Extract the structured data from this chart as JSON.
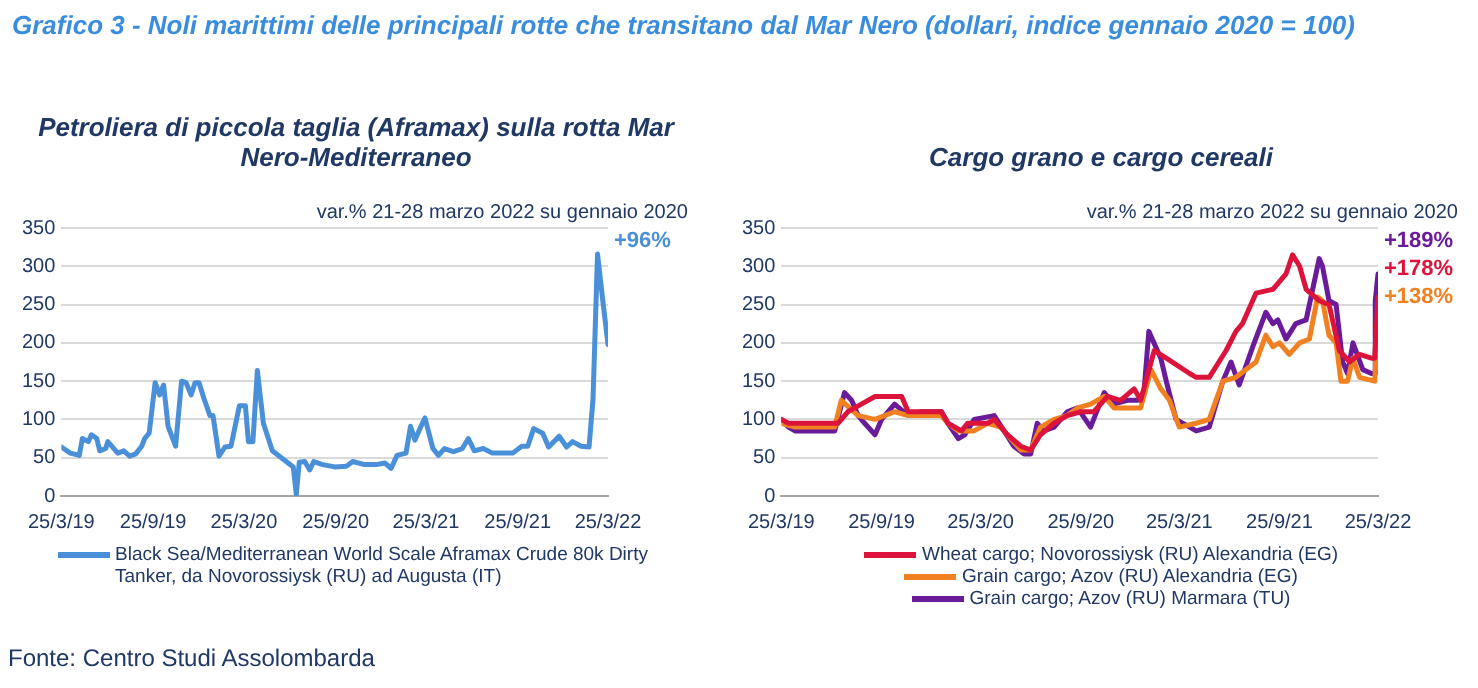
{
  "chart_data": [
    {
      "type": "line",
      "title": "Petroliera di piccola taglia (Aframax) sulla rotta Mar Nero-Mediterraneo",
      "annotations": [
        "Grafico 3 - Noli marittimi delle principali rotte che transitano dal Mar Nero (dollari, indice gennaio 2020 = 100)",
        "var.% 21-28 marzo 2022 su gennaio 2020",
        "+96%",
        "Fonte: Centro Studi Assolombarda"
      ],
      "x": [
        "2019-03-25",
        "2019-04-12",
        "2019-04-30",
        "2019-05-06",
        "2019-05-18",
        "2019-05-24",
        "2019-06-04",
        "2019-06-10",
        "2019-06-22",
        "2019-06-26",
        "2019-07-04",
        "2019-07-16",
        "2019-07-28",
        "2019-08-09",
        "2019-08-21",
        "2019-09-02",
        "2019-09-08",
        "2019-09-17",
        "2019-09-29",
        "2019-10-08",
        "2019-10-16",
        "2019-10-25",
        "2019-11-09",
        "2019-11-21",
        "2019-11-30",
        "2019-12-10",
        "2019-12-18",
        "2019-12-26",
        "2020-01-05",
        "2020-01-17",
        "2020-01-23",
        "2020-02-04",
        "2020-02-16",
        "2020-02-28",
        "2020-03-16",
        "2020-03-28",
        "2020-04-03",
        "2020-04-12",
        "2020-04-21",
        "2020-05-03",
        "2020-05-21",
        "2020-06-08",
        "2020-07-02",
        "2020-07-08",
        "2020-07-14",
        "2020-07-25",
        "2020-08-04",
        "2020-08-12",
        "2020-08-30",
        "2020-09-23",
        "2020-10-17",
        "2020-10-29",
        "2020-11-22",
        "2020-12-15",
        "2021-01-02",
        "2021-01-14",
        "2021-01-26",
        "2021-02-13",
        "2021-02-22",
        "2021-03-03",
        "2021-03-15",
        "2021-03-23",
        "2021-04-08",
        "2021-04-19",
        "2021-05-01",
        "2021-05-19",
        "2021-06-06",
        "2021-06-18",
        "2021-06-30",
        "2021-07-18",
        "2021-08-05",
        "2021-09-15",
        "2021-10-03",
        "2021-10-15",
        "2021-10-27",
        "2021-11-14",
        "2021-11-26",
        "2021-12-17",
        "2022-01-01",
        "2022-01-13",
        "2022-01-30",
        "2022-02-15",
        "2022-02-23",
        "2022-03-04",
        "2022-03-13",
        "2022-03-25"
      ],
      "series": [
        {
          "name": "Black Sea/Mediterranean World Scale Aframax Crude 80k Dirty Tanker, da Novorossiysk (RU) ad Augusta (IT)",
          "color": "#4a90d9",
          "values": [
            64,
            56,
            53,
            75,
            71,
            80,
            75,
            59,
            62,
            71,
            65,
            56,
            59,
            52,
            55,
            65,
            75,
            82,
            148,
            132,
            145,
            91,
            65,
            150,
            148,
            132,
            148,
            148,
            127,
            105,
            105,
            52,
            64,
            65,
            118,
            118,
            71,
            71,
            164,
            95,
            59,
            50,
            38,
            2,
            44,
            45,
            34,
            45,
            41,
            38,
            39,
            45,
            41,
            41,
            43,
            36,
            53,
            56,
            91,
            73,
            91,
            102,
            62,
            53,
            62,
            58,
            62,
            75,
            59,
            62,
            56,
            56,
            65,
            65,
            88,
            82,
            64,
            78,
            64,
            71,
            65,
            64,
            127,
            316,
            264,
            198
          ]
        }
      ],
      "xlim": [
        "2019-03-25",
        "2022-03-25"
      ],
      "xticks": [
        {
          "value": "2019-03-25",
          "label": "25/3/19"
        },
        {
          "value": "2019-09-25",
          "label": "25/9/19"
        },
        {
          "value": "2020-03-25",
          "label": "25/3/20"
        },
        {
          "value": "2020-09-25",
          "label": "25/9/20"
        },
        {
          "value": "2021-03-25",
          "label": "25/3/21"
        },
        {
          "value": "2021-09-25",
          "label": "25/9/21"
        },
        {
          "value": "2022-03-25",
          "label": "25/3/22"
        }
      ],
      "ylim": [
        0,
        350
      ],
      "yticks": [
        0,
        50,
        100,
        150,
        200,
        250,
        300,
        350
      ],
      "grid": "y",
      "legend": "bottom",
      "marker": "none",
      "line_style": "solid"
    },
    {
      "type": "line",
      "title": "Cargo grano e cargo cereali",
      "annotations": [
        "var.% 21-28 marzo 2022 su gennaio 2020",
        "+189%",
        "+178%",
        "+138%"
      ],
      "xlim": [
        "2019-03-25",
        "2022-03-25"
      ],
      "xticks": [
        {
          "value": "2019-03-25",
          "label": "25/3/19"
        },
        {
          "value": "2019-09-25",
          "label": "25/9/19"
        },
        {
          "value": "2020-03-25",
          "label": "25/3/20"
        },
        {
          "value": "2020-09-25",
          "label": "25/9/20"
        },
        {
          "value": "2021-03-25",
          "label": "25/3/21"
        },
        {
          "value": "2021-09-25",
          "label": "25/9/21"
        },
        {
          "value": "2022-03-25",
          "label": "25/3/22"
        }
      ],
      "ylim": [
        0,
        350
      ],
      "yticks": [
        0,
        50,
        100,
        150,
        200,
        250,
        300,
        350
      ],
      "grid": "y",
      "legend": "bottom",
      "marker": "none",
      "line_style": "solid",
      "series": [
        {
          "name": "Wheat cargo; Novorossiysk (RU) Alexandria (EG)",
          "color": "#dc143c",
          "x": [
            "2019-03-25",
            "2019-04-07",
            "2019-07-07",
            "2019-07-25",
            "2019-08-19",
            "2019-09-13",
            "2019-11-01",
            "2019-11-13",
            "2020-01-13",
            "2020-01-25",
            "2020-02-19",
            "2020-03-01",
            "2020-04-07",
            "2020-04-19",
            "2020-05-13",
            "2020-06-07",
            "2020-06-25",
            "2020-07-13",
            "2020-08-07",
            "2020-08-31",
            "2020-09-25",
            "2020-10-19",
            "2020-11-13",
            "2020-12-07",
            "2021-01-01",
            "2021-01-13",
            "2021-02-07",
            "2021-03-01",
            "2021-04-13",
            "2021-04-25",
            "2021-05-19",
            "2021-06-19",
            "2021-07-07",
            "2021-07-19",
            "2021-08-13",
            "2021-09-13",
            "2021-10-07",
            "2021-10-19",
            "2021-11-01",
            "2021-11-13",
            "2021-12-07",
            "2021-12-25",
            "2022-01-13",
            "2022-02-01",
            "2022-02-19",
            "2022-03-13",
            "2022-03-19",
            "2022-03-25"
          ],
          "values": [
            100,
            95,
            95,
            110,
            120,
            130,
            130,
            110,
            110,
            95,
            85,
            95,
            95,
            100,
            80,
            65,
            60,
            80,
            95,
            105,
            110,
            110,
            130,
            125,
            140,
            125,
            190,
            180,
            160,
            155,
            155,
            190,
            215,
            225,
            265,
            270,
            290,
            315,
            300,
            270,
            255,
            250,
            190,
            175,
            185,
            180,
            180,
            260
          ]
        },
        {
          "name": "Grain cargo; Azov (RU) Alexandria (EG)",
          "color": "#f08020",
          "x": [
            "2019-03-25",
            "2019-04-19",
            "2019-07-01",
            "2019-07-13",
            "2019-08-13",
            "2019-09-13",
            "2019-10-19",
            "2019-11-13",
            "2020-01-13",
            "2020-01-25",
            "2020-02-13",
            "2020-03-13",
            "2020-04-07",
            "2020-05-01",
            "2020-05-19",
            "2020-06-07",
            "2020-06-25",
            "2020-07-13",
            "2020-08-07",
            "2020-08-31",
            "2020-09-19",
            "2020-10-13",
            "2020-11-07",
            "2020-11-25",
            "2021-01-13",
            "2021-02-01",
            "2021-02-19",
            "2021-03-07",
            "2021-03-25",
            "2021-04-25",
            "2021-05-19",
            "2021-06-13",
            "2021-07-07",
            "2021-07-25",
            "2021-08-13",
            "2021-08-31",
            "2021-09-13",
            "2021-09-25",
            "2021-10-13",
            "2021-11-01",
            "2021-11-19",
            "2021-12-04",
            "2021-12-13",
            "2021-12-25",
            "2022-01-07",
            "2022-01-16",
            "2022-01-28",
            "2022-02-07",
            "2022-02-19",
            "2022-03-19",
            "2022-03-25"
          ],
          "values": [
            95,
            90,
            90,
            125,
            105,
            100,
            110,
            105,
            105,
            95,
            85,
            85,
            95,
            90,
            75,
            60,
            60,
            90,
            100,
            105,
            115,
            120,
            130,
            115,
            115,
            165,
            140,
            125,
            90,
            95,
            100,
            150,
            155,
            165,
            175,
            210,
            195,
            200,
            185,
            200,
            205,
            260,
            255,
            210,
            200,
            150,
            150,
            180,
            155,
            150,
            240
          ]
        },
        {
          "name": "Grain cargo; Azov (RU) Marmara (TU)",
          "color": "#6a1b9a",
          "x": [
            "2019-03-25",
            "2019-04-07",
            "2019-04-19",
            "2019-07-01",
            "2019-07-19",
            "2019-08-01",
            "2019-08-13",
            "2019-08-25",
            "2019-09-13",
            "2019-09-25",
            "2019-10-19",
            "2019-11-13",
            "2019-12-07",
            "2020-01-13",
            "2020-01-25",
            "2020-02-13",
            "2020-02-25",
            "2020-03-13",
            "2020-04-19",
            "2020-05-07",
            "2020-05-25",
            "2020-06-13",
            "2020-06-25",
            "2020-07-07",
            "2020-07-19",
            "2020-08-07",
            "2020-08-31",
            "2020-09-19",
            "2020-10-13",
            "2020-11-07",
            "2020-11-25",
            "2020-12-19",
            "2021-01-07",
            "2021-01-19",
            "2021-01-28",
            "2021-02-19",
            "2021-03-01",
            "2021-03-19",
            "2021-04-13",
            "2021-04-25",
            "2021-05-19",
            "2021-06-13",
            "2021-06-28",
            "2021-07-13",
            "2021-08-07",
            "2021-08-31",
            "2021-09-13",
            "2021-09-22",
            "2021-10-07",
            "2021-10-25",
            "2021-11-13",
            "2021-12-07",
            "2021-12-13",
            "2021-12-25",
            "2022-01-07",
            "2022-01-19",
            "2022-01-28",
            "2022-02-07",
            "2022-02-25",
            "2022-03-13",
            "2022-03-19",
            "2022-03-20",
            "2022-03-25"
          ],
          "values": [
            100,
            90,
            85,
            85,
            135,
            125,
            105,
            95,
            80,
            100,
            120,
            105,
            110,
            110,
            95,
            75,
            80,
            100,
            105,
            85,
            65,
            55,
            55,
            95,
            85,
            90,
            110,
            115,
            90,
            135,
            120,
            125,
            125,
            135,
            215,
            180,
            150,
            100,
            90,
            85,
            90,
            150,
            175,
            145,
            195,
            240,
            225,
            230,
            205,
            225,
            230,
            310,
            300,
            255,
            250,
            175,
            160,
            200,
            165,
            160,
            160,
            255,
            290
          ]
        }
      ]
    }
  ]
}
